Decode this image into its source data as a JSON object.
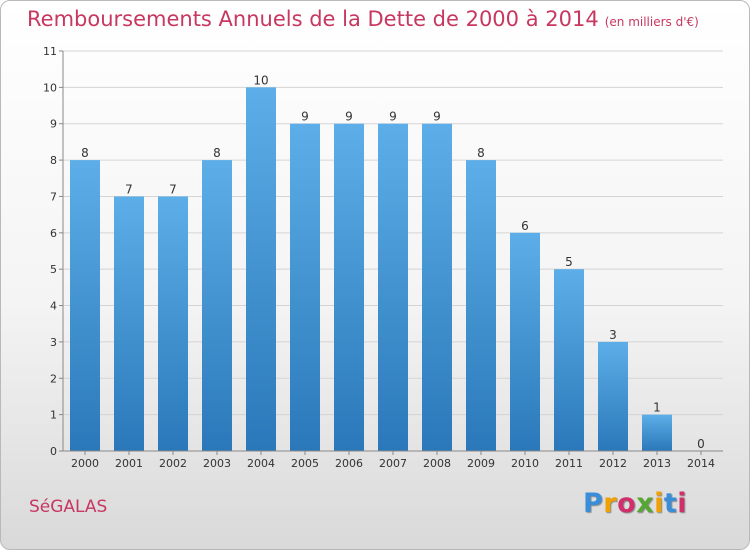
{
  "title": "Remboursements Annuels de la Dette de 2000 à 2014",
  "unit": "(en milliers d'€)",
  "town": "SéGALAS",
  "logo": {
    "letters": [
      {
        "ch": "P",
        "color": "#3a8dd8"
      },
      {
        "ch": "r",
        "color": "#f0a000"
      },
      {
        "ch": "o",
        "color": "#cf2f6a"
      },
      {
        "ch": "x",
        "color": "#55a633"
      },
      {
        "ch": "i",
        "color": "#f0a000"
      },
      {
        "ch": "t",
        "color": "#3a8dd8"
      },
      {
        "ch": "i",
        "color": "#cf2f6a"
      }
    ]
  },
  "colors": {
    "bar_top": "#5daee8",
    "bar_bottom": "#2a78b9",
    "title": "#c8375f"
  },
  "chart_data": {
    "type": "bar",
    "categories": [
      "2000",
      "2001",
      "2002",
      "2003",
      "2004",
      "2005",
      "2006",
      "2007",
      "2008",
      "2009",
      "2010",
      "2011",
      "2012",
      "2013",
      "2014"
    ],
    "values": [
      8,
      7,
      7,
      8,
      10,
      9,
      9,
      9,
      9,
      8,
      6,
      5,
      3,
      1,
      0
    ],
    "value_labels": [
      "8",
      "7",
      "7",
      "8",
      "10",
      "9",
      "9",
      "9",
      "9",
      "8",
      "6",
      "5",
      "3",
      "1",
      "0"
    ],
    "y_ticks": [
      "0",
      "1",
      "2",
      "3",
      "4",
      "5",
      "6",
      "7",
      "8",
      "9",
      "10",
      "11"
    ],
    "ylim": [
      0,
      11
    ],
    "grid": true
  }
}
